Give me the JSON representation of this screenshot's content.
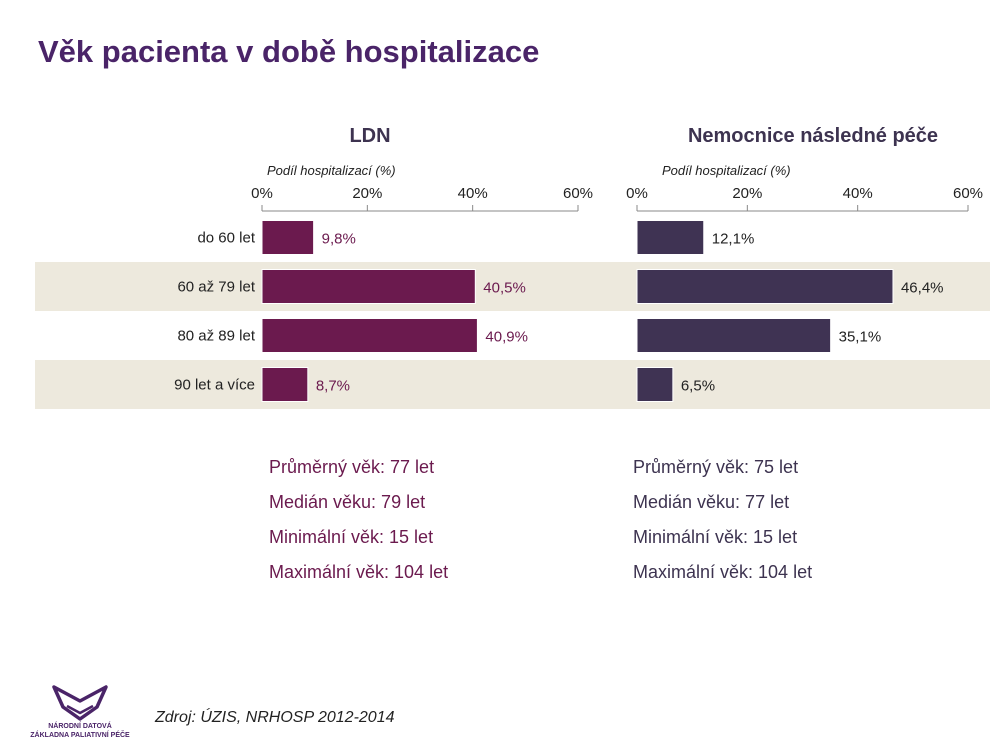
{
  "title": "Věk pacienta v době hospitalizace",
  "colors": {
    "ldn": "#6b1a4e",
    "nnp": "#3f3353",
    "band": "#ede9dd",
    "title": "#4a2468"
  },
  "chart_data": [
    {
      "type": "bar",
      "orientation": "horizontal",
      "title": "LDN",
      "xlabel": "Podíl hospitalizací (%)",
      "xlim": [
        0,
        60
      ],
      "ticks": [
        "0%",
        "20%",
        "40%",
        "60%"
      ],
      "categories": [
        "do 60 let",
        "60 až 79 let",
        "80 až 89 let",
        "90 let a více"
      ],
      "values": [
        9.8,
        40.5,
        40.9,
        8.7
      ],
      "value_labels": [
        "9,8%",
        "40,5%",
        "40,9%",
        "8,7%"
      ],
      "color": "#6b1a4e"
    },
    {
      "type": "bar",
      "orientation": "horizontal",
      "title": "Nemocnice následné péče",
      "xlabel": "Podíl hospitalizací (%)",
      "xlim": [
        0,
        60
      ],
      "ticks": [
        "0%",
        "20%",
        "40%",
        "60%"
      ],
      "categories": [
        "do 60 let",
        "60 až 79 let",
        "80 až 89 let",
        "90 let a více"
      ],
      "values": [
        12.1,
        46.4,
        35.1,
        6.5
      ],
      "value_labels": [
        "12,1%",
        "46,4%",
        "35,1%",
        "6,5%"
      ],
      "color": "#3f3353"
    }
  ],
  "stats": {
    "ldn": {
      "mean": "Průměrný věk: 77 let",
      "median": "Medián věku: 79 let",
      "min": "Minimální věk: 15 let",
      "max": "Maximální věk: 104 let"
    },
    "nnp": {
      "mean": "Průměrný věk: 75 let",
      "median": "Medián věku: 77 let",
      "min": "Minimální věk: 15 let",
      "max": "Maximální věk: 104 let"
    }
  },
  "source": "Zdroj: ÚZIS, NRHOSP 2012-2014",
  "logo": {
    "line1": "NÁRODNÍ DATOVÁ",
    "line2": "ZÁKLADNA PALIATIVNÍ PÉČE"
  }
}
